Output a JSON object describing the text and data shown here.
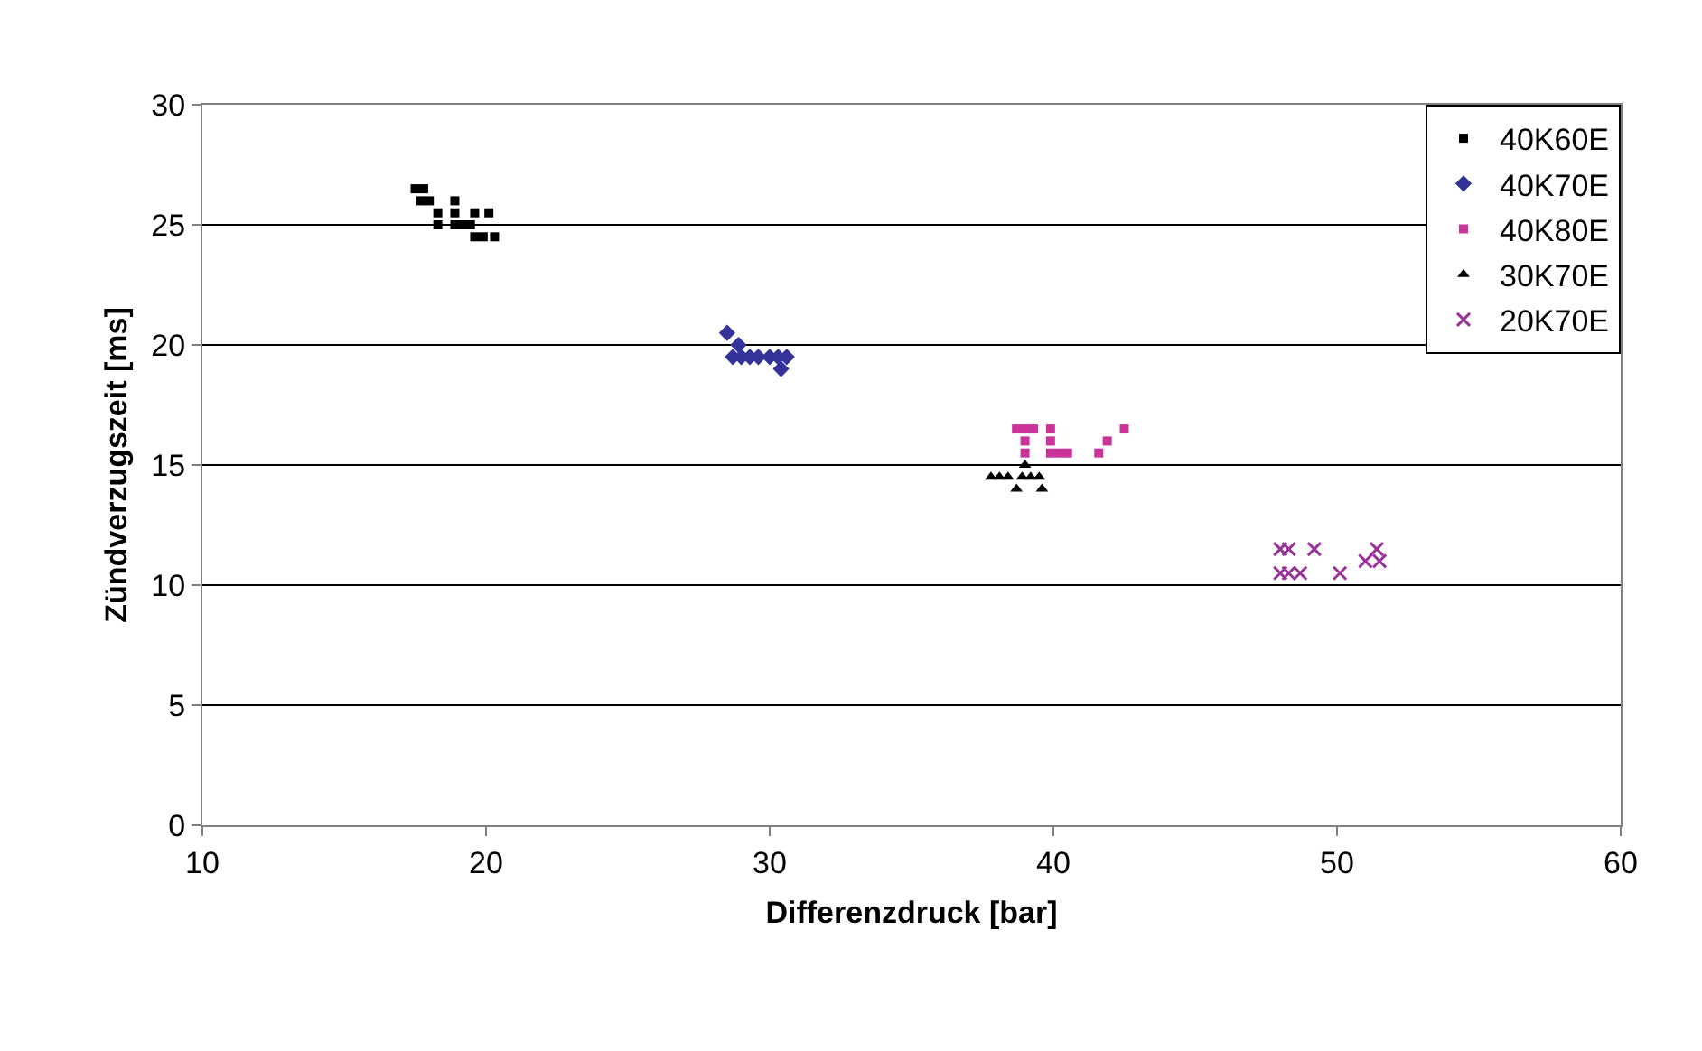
{
  "chart_data": {
    "type": "scatter",
    "xlabel": "Differenzdruck [bar]",
    "ylabel": "Zündverzugszeit [ms]",
    "xlim": [
      10,
      60
    ],
    "xticks": [
      10,
      20,
      30,
      40,
      50,
      60
    ],
    "ylim": [
      0,
      30
    ],
    "yticks": [
      0,
      5,
      10,
      15,
      20,
      25,
      30
    ],
    "grid": "y",
    "legend": "top right",
    "series": [
      {
        "name": "40K60E",
        "color": "#000000",
        "marker": "square",
        "x": [
          17.5,
          17.8,
          17.7,
          18.0,
          18.9,
          18.3,
          18.9,
          19.6,
          20.1,
          18.3,
          18.9,
          19.15,
          19.45,
          19.6,
          19.9,
          20.3
        ],
        "values": [
          26.5,
          26.5,
          26,
          26,
          26,
          25.5,
          25.5,
          25.5,
          25.5,
          25,
          25,
          25,
          25,
          24.5,
          24.5,
          24.5
        ]
      },
      {
        "name": "40K70E",
        "color": "#333399",
        "marker": "diamond",
        "x": [
          28.5,
          28.9,
          28.7,
          29.0,
          29.3,
          29.6,
          30.0,
          30.3,
          30.6,
          30.4
        ],
        "values": [
          20.5,
          20,
          19.5,
          19.5,
          19.5,
          19.5,
          19.5,
          19.5,
          19.5,
          19
        ]
      },
      {
        "name": "40K80E",
        "color": "#cc3399",
        "marker": "square",
        "x": [
          38.7,
          39.0,
          39.3,
          39.0,
          39.0,
          39.9,
          39.9,
          39.9,
          40.2,
          40.5,
          41.6,
          41.9,
          42.5
        ],
        "values": [
          16.5,
          16.5,
          16.5,
          16,
          15.5,
          16.5,
          16,
          15.5,
          15.5,
          15.5,
          15.5,
          16,
          16.5
        ]
      },
      {
        "name": "30K70E",
        "color": "#000000",
        "marker": "triangle",
        "x": [
          37.8,
          38.1,
          38.4,
          38.9,
          39.2,
          39.5,
          39.0,
          38.7,
          39.6
        ],
        "values": [
          14.5,
          14.5,
          14.5,
          14.5,
          14.5,
          14.5,
          15,
          14,
          14
        ]
      },
      {
        "name": "20K70E",
        "color": "#993399",
        "marker": "cross",
        "x": [
          48.0,
          48.3,
          49.2,
          51.4,
          48.0,
          48.3,
          48.7,
          50.1,
          51.0,
          51.5
        ],
        "values": [
          11.5,
          11.5,
          11.5,
          11.5,
          10.5,
          10.5,
          10.5,
          10.5,
          11,
          11
        ]
      }
    ]
  }
}
